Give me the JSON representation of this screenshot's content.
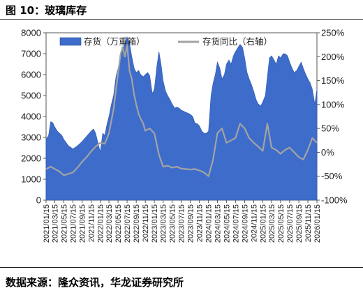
{
  "figure": {
    "title": "图 10：玻璃库存",
    "source": "数据来源：隆众资讯，华龙证券研究所"
  },
  "colors": {
    "inventory_fill": "#3e6ccb",
    "yoy_line": "#a3a3a3",
    "axis": "#555555",
    "title_text": "#000000"
  },
  "chart_data": {
    "type": "area",
    "title": "",
    "xlabel": "",
    "ylabel": "",
    "legend_position": "top",
    "grid": false,
    "x_tick_labels": [
      "2021/01/15",
      "2021/03/15",
      "2021/05/15",
      "2021/07/15",
      "2021/09/15",
      "2021/11/15",
      "2022/01/15",
      "2022/03/15",
      "2022/05/15",
      "2022/07/15",
      "2022/09/15",
      "2022/11/15",
      "2023/01/15",
      "2023/03/15",
      "2023/05/15",
      "2023/07/15",
      "2023/09/15",
      "2023/11/15",
      "2024/01/15",
      "2024/03/15",
      "2024/05/15",
      "2024/07/15",
      "2024/09/15",
      "2024/11/15",
      "2025/01/15",
      "2025/03/15",
      "2025/05/15",
      "2025/07/15",
      "2025/09/15",
      "2025/11/15",
      "2026/01/15"
    ],
    "y_left": {
      "ticks": [
        0,
        1000,
        2000,
        3000,
        4000,
        5000,
        6000,
        7000,
        8000
      ],
      "range": [
        0,
        8000
      ]
    },
    "y_right": {
      "ticks": [
        "250%",
        "200%",
        "150%",
        "100%",
        "50%",
        "0%",
        "-50%",
        "-100%"
      ],
      "range": [
        -100,
        250
      ]
    },
    "series": [
      {
        "name": "存货（万重箱）",
        "axis": "left",
        "kind": "area",
        "x": [
          "2021-01-15",
          "2021-02-01",
          "2021-02-15",
          "2021-03-01",
          "2021-03-15",
          "2021-04-01",
          "2021-05-01",
          "2021-05-15",
          "2021-06-15",
          "2021-07-15",
          "2021-08-15",
          "2021-09-15",
          "2021-10-15",
          "2021-11-15",
          "2021-12-01",
          "2021-12-15",
          "2022-01-01",
          "2022-01-15",
          "2022-02-01",
          "2022-02-15",
          "2022-03-01",
          "2022-03-15",
          "2022-04-01",
          "2022-04-15",
          "2022-05-01",
          "2022-05-15",
          "2022-06-01",
          "2022-06-15",
          "2022-07-01",
          "2022-07-15",
          "2022-08-01",
          "2022-08-15",
          "2022-09-01",
          "2022-09-15",
          "2022-10-01",
          "2022-10-15",
          "2022-11-01",
          "2022-11-15",
          "2022-12-01",
          "2022-12-15",
          "2023-01-01",
          "2023-01-15",
          "2023-02-01",
          "2023-02-15",
          "2023-03-01",
          "2023-03-15",
          "2023-04-01",
          "2023-04-15",
          "2023-05-01",
          "2023-05-15",
          "2023-06-01",
          "2023-06-15",
          "2023-07-01",
          "2023-07-15",
          "2023-08-01",
          "2023-08-15",
          "2023-09-01",
          "2023-09-15",
          "2023-10-01",
          "2023-10-15",
          "2023-11-01",
          "2023-11-15",
          "2023-12-01",
          "2023-12-15",
          "2024-01-01",
          "2024-01-15",
          "2024-02-01",
          "2024-02-15",
          "2024-03-01",
          "2024-03-15",
          "2024-04-01",
          "2024-04-15",
          "2024-05-01",
          "2024-05-15",
          "2024-06-01",
          "2024-06-15",
          "2024-07-01",
          "2024-07-15",
          "2024-08-01",
          "2024-08-15",
          "2024-09-01",
          "2024-09-15",
          "2024-10-01",
          "2024-10-15",
          "2024-11-01",
          "2024-11-15",
          "2024-12-01",
          "2024-12-15",
          "2025-01-01",
          "2025-01-15",
          "2025-02-01",
          "2025-02-15",
          "2025-03-01",
          "2025-03-15",
          "2025-04-01",
          "2025-04-15",
          "2025-05-01",
          "2025-05-15",
          "2025-06-01",
          "2025-06-15",
          "2025-07-01",
          "2025-07-15",
          "2025-08-01",
          "2025-08-15",
          "2025-09-01",
          "2025-09-15",
          "2025-10-01",
          "2025-10-15",
          "2025-11-01",
          "2025-11-15",
          "2025-12-01",
          "2025-12-15",
          "2026-01-01",
          "2026-01-15"
        ],
        "values": [
          2900,
          3100,
          3750,
          3700,
          3500,
          3300,
          3100,
          2900,
          2600,
          2450,
          2600,
          2800,
          3050,
          3300,
          3400,
          3200,
          2700,
          2300,
          3200,
          3100,
          3600,
          4000,
          4600,
          5000,
          5900,
          6300,
          6800,
          7200,
          7500,
          7800,
          7500,
          6900,
          6300,
          6100,
          6200,
          6000,
          5900,
          6000,
          6100,
          5950,
          5100,
          5300,
          6400,
          7100,
          6500,
          5700,
          5200,
          5000,
          4800,
          4600,
          4400,
          4450,
          4400,
          4300,
          4250,
          4200,
          4150,
          4100,
          4000,
          3700,
          3650,
          3550,
          3300,
          3200,
          3200,
          3300,
          5000,
          5600,
          6000,
          6600,
          6300,
          5800,
          6000,
          6500,
          6700,
          6500,
          6900,
          7100,
          7300,
          7450,
          7300,
          6800,
          6100,
          5800,
          5500,
          5200,
          4800,
          4600,
          4500,
          4700,
          5000,
          5900,
          6800,
          6900,
          6700,
          6500,
          6900,
          6800,
          7000,
          7000,
          6900,
          6600,
          6300,
          6100,
          6200,
          6400,
          6600,
          6300,
          6000,
          5800,
          5600,
          5300,
          4600,
          5300
        ]
      },
      {
        "name": "存货同比（右轴）",
        "axis": "right",
        "kind": "line",
        "x": [
          "2021-01-15",
          "2021-02-15",
          "2021-03-15",
          "2021-04-15",
          "2021-05-15",
          "2021-06-15",
          "2021-07-15",
          "2021-08-15",
          "2021-09-15",
          "2021-10-15",
          "2021-11-15",
          "2021-12-15",
          "2022-01-15",
          "2022-02-15",
          "2022-03-15",
          "2022-04-15",
          "2022-05-15",
          "2022-06-01",
          "2022-06-15",
          "2022-07-01",
          "2022-07-15",
          "2022-08-01",
          "2022-08-15",
          "2022-09-01",
          "2022-09-15",
          "2022-10-01",
          "2022-10-15",
          "2022-11-01",
          "2022-11-15",
          "2022-12-15",
          "2023-01-15",
          "2023-02-15",
          "2023-03-15",
          "2023-04-15",
          "2023-05-15",
          "2023-06-15",
          "2023-07-15",
          "2023-08-15",
          "2023-09-15",
          "2023-10-15",
          "2023-11-15",
          "2023-12-15",
          "2024-01-15",
          "2024-02-15",
          "2024-03-15",
          "2024-04-15",
          "2024-05-15",
          "2024-06-15",
          "2024-07-15",
          "2024-08-15",
          "2024-09-15",
          "2024-10-15",
          "2024-11-15",
          "2024-12-15",
          "2025-01-15",
          "2025-02-15",
          "2025-03-15",
          "2025-04-15",
          "2025-05-15",
          "2025-06-15",
          "2025-07-15",
          "2025-08-15",
          "2025-09-15",
          "2025-10-15",
          "2025-11-15",
          "2025-12-15",
          "2026-01-15"
        ],
        "values": [
          -35,
          -30,
          -35,
          -40,
          -48,
          -45,
          -42,
          -32,
          -20,
          -10,
          2,
          12,
          20,
          18,
          40,
          90,
          165,
          205,
          220,
          200,
          225,
          170,
          155,
          120,
          100,
          80,
          70,
          60,
          45,
          50,
          40,
          -5,
          -30,
          -28,
          -32,
          -30,
          -34,
          -35,
          -36,
          -35,
          -38,
          -42,
          -50,
          -15,
          40,
          50,
          20,
          25,
          30,
          60,
          50,
          30,
          20,
          12,
          3,
          60,
          10,
          5,
          -3,
          5,
          10,
          0,
          -10,
          -15,
          5,
          30,
          20
        ]
      }
    ]
  }
}
